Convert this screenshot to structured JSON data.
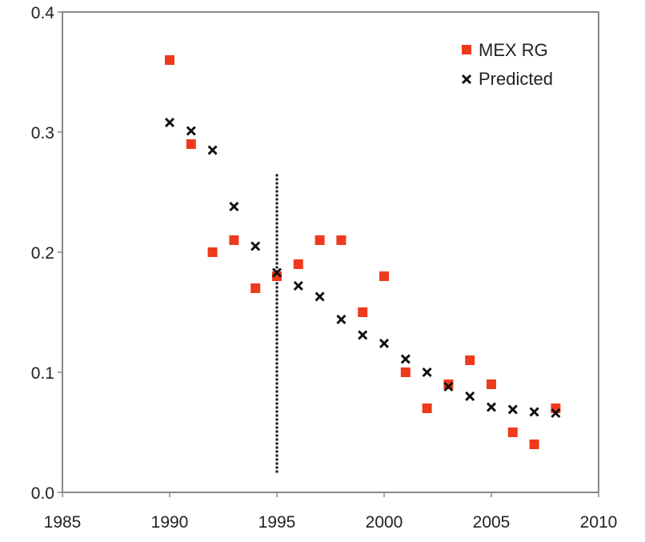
{
  "chart_data": {
    "type": "scatter",
    "xlim": [
      1985,
      2010
    ],
    "ylim": [
      0.0,
      0.4
    ],
    "x_ticks": [
      1985,
      1990,
      1995,
      2000,
      2005,
      2010
    ],
    "x_tick_labels": [
      "1985",
      "1990",
      "1995",
      "2000",
      "2005",
      "2010"
    ],
    "y_ticks": [
      0.0,
      0.1,
      0.2,
      0.3,
      0.4
    ],
    "y_tick_labels": [
      "0.0",
      "0.1",
      "0.2",
      "0.3",
      "0.4"
    ],
    "grid": false,
    "legend_position": "top-right",
    "series": [
      {
        "name": "MEX RG",
        "marker": "square",
        "color": "#ee3a1c",
        "points": [
          {
            "x": 1990,
            "y": 0.36
          },
          {
            "x": 1991,
            "y": 0.29
          },
          {
            "x": 1992,
            "y": 0.2
          },
          {
            "x": 1993,
            "y": 0.21
          },
          {
            "x": 1994,
            "y": 0.17
          },
          {
            "x": 1995,
            "y": 0.18
          },
          {
            "x": 1996,
            "y": 0.19
          },
          {
            "x": 1997,
            "y": 0.21
          },
          {
            "x": 1998,
            "y": 0.21
          },
          {
            "x": 1999,
            "y": 0.15
          },
          {
            "x": 2000,
            "y": 0.18
          },
          {
            "x": 2001,
            "y": 0.1
          },
          {
            "x": 2002,
            "y": 0.07
          },
          {
            "x": 2003,
            "y": 0.09
          },
          {
            "x": 2004,
            "y": 0.11
          },
          {
            "x": 2005,
            "y": 0.09
          },
          {
            "x": 2006,
            "y": 0.05
          },
          {
            "x": 2007,
            "y": 0.04
          },
          {
            "x": 2008,
            "y": 0.07
          }
        ]
      },
      {
        "name": "Predicted",
        "marker": "x",
        "color": "#111111",
        "points": [
          {
            "x": 1990,
            "y": 0.308
          },
          {
            "x": 1991,
            "y": 0.301
          },
          {
            "x": 1992,
            "y": 0.285
          },
          {
            "x": 1993,
            "y": 0.238
          },
          {
            "x": 1994,
            "y": 0.205
          },
          {
            "x": 1995,
            "y": 0.183
          },
          {
            "x": 1996,
            "y": 0.172
          },
          {
            "x": 1997,
            "y": 0.163
          },
          {
            "x": 1998,
            "y": 0.144
          },
          {
            "x": 1999,
            "y": 0.131
          },
          {
            "x": 2000,
            "y": 0.124
          },
          {
            "x": 2001,
            "y": 0.111
          },
          {
            "x": 2002,
            "y": 0.1
          },
          {
            "x": 2003,
            "y": 0.088
          },
          {
            "x": 2004,
            "y": 0.08
          },
          {
            "x": 2005,
            "y": 0.071
          },
          {
            "x": 2006,
            "y": 0.069
          },
          {
            "x": 2007,
            "y": 0.067
          },
          {
            "x": 2008,
            "y": 0.066
          }
        ]
      }
    ],
    "reference_line": {
      "type": "vertical",
      "style": "dotted",
      "x": 1995,
      "y_range": [
        0.015,
        0.265
      ],
      "color": "#111111"
    }
  }
}
